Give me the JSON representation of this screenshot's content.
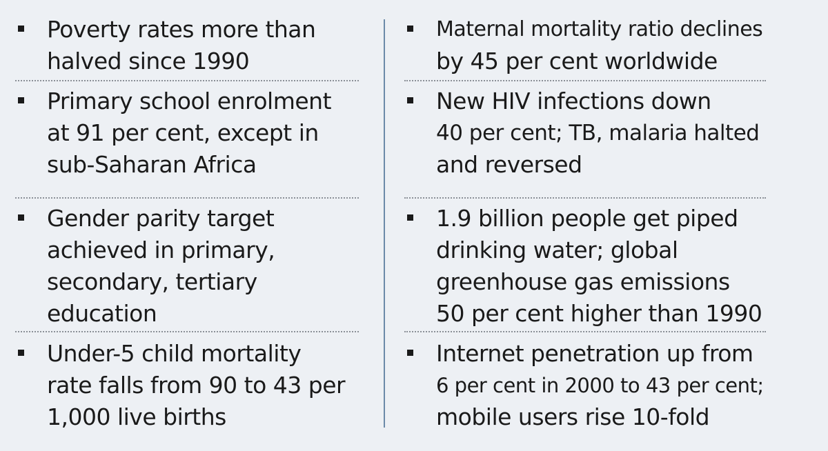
{
  "left_column": [
    {
      "lines": [
        "Poverty rates more than",
        "halved since 1990"
      ]
    },
    {
      "lines": [
        "Primary school enrolment",
        "at 91 per cent, except in",
        "sub-Saharan Africa"
      ]
    },
    {
      "lines": [
        "Gender parity target",
        "achieved in primary,",
        "secondary, tertiary",
        "education"
      ]
    },
    {
      "lines": [
        "Under-5 child mortality",
        "rate falls from 90 to 43 per",
        "1,000 live births"
      ]
    }
  ],
  "right_column": [
    {
      "lines": [
        "Maternal mortality ratio declines",
        "by 45 per cent worldwide"
      ]
    },
    {
      "lines": [
        "New HIV infections down",
        "40 per cent; TB, malaria halted",
        "and reversed"
      ]
    },
    {
      "lines": [
        "1.9 billion people get piped",
        "drinking water; global",
        "greenhouse gas emissions",
        "50 per cent higher than 1990"
      ]
    },
    {
      "lines": [
        "Internet penetration up from",
        "6 per cent in 2000 to 43 per cent;",
        "mobile users rise 10-fold"
      ]
    }
  ],
  "colors": {
    "background": "#edf0f4",
    "text": "#1a1a1a",
    "divider": "#6b8aa8",
    "dotted_rule": "#8a8f96"
  }
}
